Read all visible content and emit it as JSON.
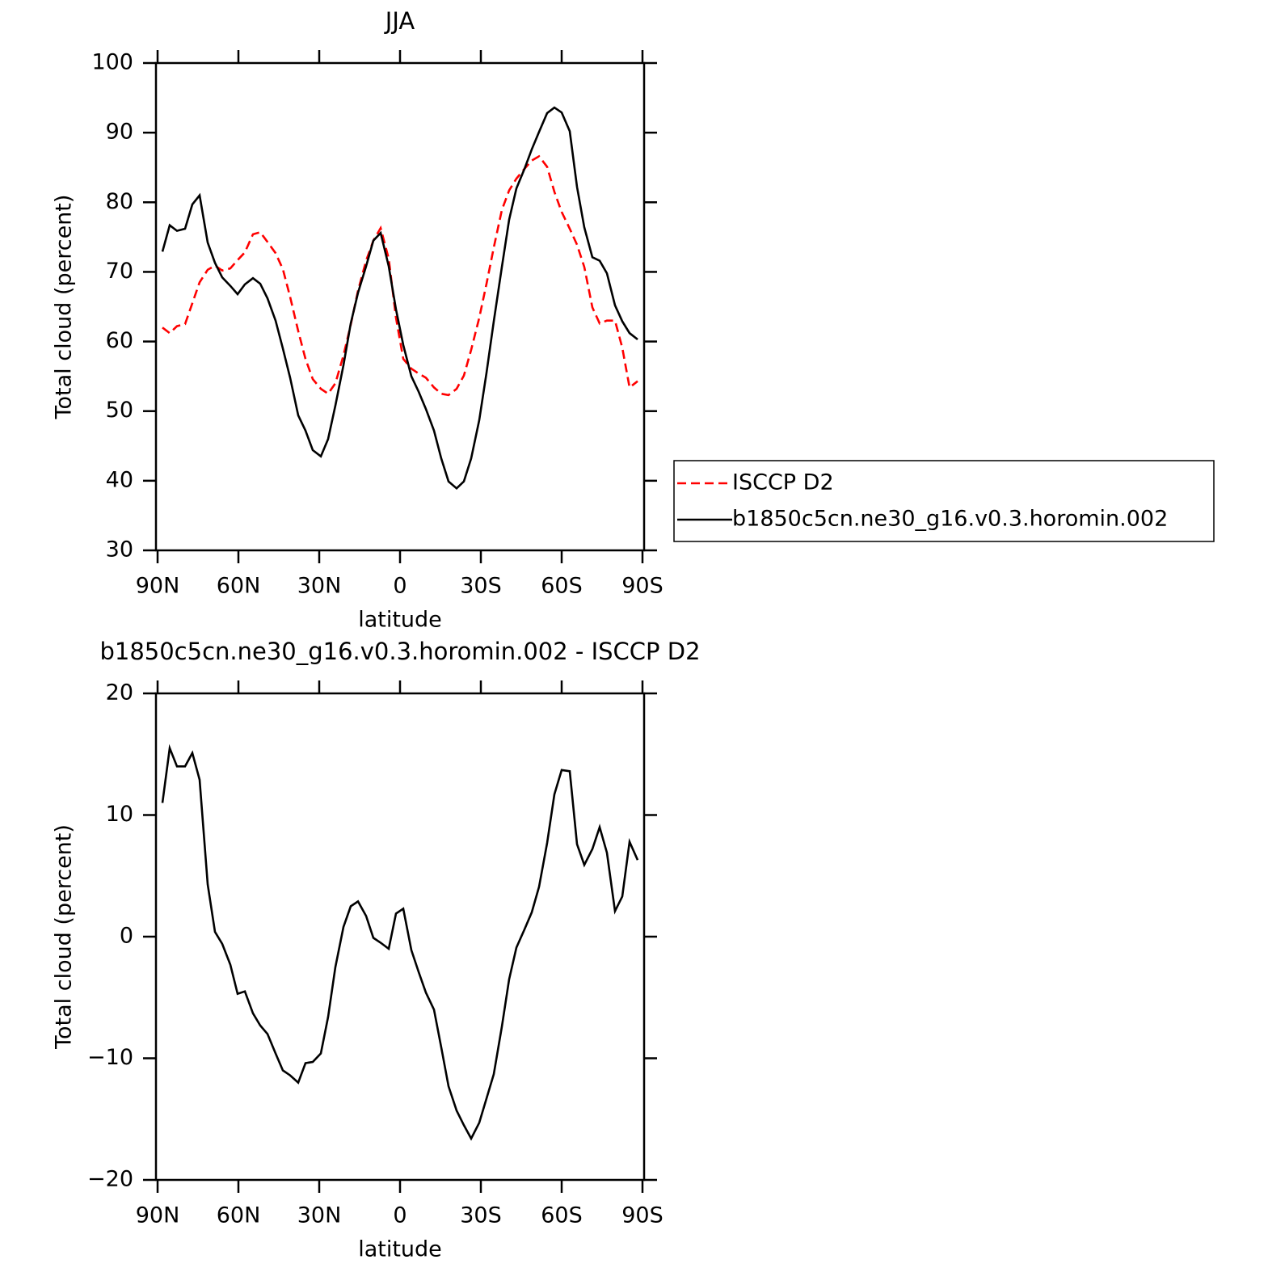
{
  "chart_data": [
    {
      "type": "line",
      "title": "JJA",
      "ylabel": "Total cloud (percent)",
      "xlabel": "latitude",
      "xlim": [
        90,
        -90
      ],
      "xticks": [
        {
          "value": 90,
          "label": "90N"
        },
        {
          "value": 60,
          "label": "60N"
        },
        {
          "value": 30,
          "label": "30N"
        },
        0,
        {
          "value": -30,
          "label": "30S"
        },
        {
          "value": -60,
          "label": "60S"
        },
        {
          "value": -90,
          "label": "90S"
        }
      ],
      "ylim": [
        30,
        100
      ],
      "yticks": [
        30,
        40,
        50,
        60,
        70,
        80,
        90,
        100
      ],
      "legend": "right",
      "x": [
        88.2,
        85.5,
        82.8,
        79.8,
        77.1,
        74.4,
        71.4,
        68.7,
        66.0,
        63.0,
        60.3,
        57.6,
        54.6,
        51.9,
        49.2,
        46.2,
        43.5,
        40.8,
        37.8,
        35.1,
        32.4,
        29.4,
        26.7,
        24.0,
        21.0,
        18.3,
        15.6,
        12.6,
        9.9,
        7.2,
        4.2,
        1.5,
        -1.2,
        -4.2,
        -6.9,
        -9.6,
        -12.6,
        -15.3,
        -18.0,
        -21.0,
        -23.7,
        -26.4,
        -29.4,
        -32.1,
        -34.8,
        -37.8,
        -40.5,
        -43.2,
        -46.2,
        -48.9,
        -51.6,
        -54.6,
        -57.3,
        -60.0,
        -63.0,
        -65.7,
        -68.4,
        -71.4,
        -74.1,
        -76.8,
        -79.8,
        -82.5,
        -85.2,
        -88.2
      ],
      "series": [
        {
          "name": "ISCCP D2",
          "color": "#ff0000",
          "line_style": "dashed",
          "values": [
            62.0,
            61.2,
            62.2,
            62.5,
            65.5,
            68.5,
            70.3,
            70.9,
            70.2,
            70.5,
            71.7,
            72.8,
            75.4,
            75.7,
            74.3,
            72.7,
            70.4,
            66.4,
            61.5,
            57.5,
            54.6,
            53.2,
            52.5,
            54.0,
            58.0,
            62.4,
            67.3,
            71.6,
            74.5,
            76.3,
            71.9,
            63.4,
            57.5,
            56.1,
            55.4,
            54.8,
            53.4,
            52.5,
            52.3,
            53.2,
            55.1,
            58.8,
            63.4,
            68.3,
            73.5,
            78.9,
            81.7,
            83.4,
            84.8,
            86.0,
            86.6,
            85.1,
            81.5,
            78.6,
            76.2,
            73.9,
            70.7,
            64.9,
            62.6,
            63.0,
            63.0,
            59.1,
            53.4,
            54.3
          ]
        },
        {
          "name": "b1850c5cn.ne30_g16.v0.3.horomin.002",
          "color": "#000000",
          "line_style": "solid",
          "values": [
            72.9,
            76.7,
            75.9,
            76.2,
            79.7,
            81.0,
            74.2,
            71.3,
            69.2,
            68.0,
            66.8,
            68.2,
            69.1,
            68.3,
            66.2,
            63.0,
            59.0,
            54.8,
            49.4,
            47.2,
            44.4,
            43.5,
            46.0,
            50.8,
            56.6,
            62.6,
            67.0,
            70.8,
            74.5,
            75.6,
            70.8,
            64.6,
            59.5,
            55.0,
            52.8,
            50.3,
            47.2,
            43.2,
            39.9,
            38.9,
            39.9,
            43.2,
            48.7,
            55.5,
            62.9,
            70.7,
            77.5,
            82.0,
            84.8,
            87.6,
            90.1,
            92.8,
            93.6,
            92.9,
            90.2,
            82.2,
            76.4,
            72.1,
            71.6,
            69.8,
            65.2,
            62.9,
            61.2,
            60.3
          ]
        }
      ]
    },
    {
      "type": "line",
      "title": "b1850c5cn.ne30_g16.v0.3.horomin.002 - ISCCP D2",
      "ylabel": "Total cloud (percent)",
      "xlabel": "latitude",
      "xlim": [
        90,
        -90
      ],
      "xticks": [
        {
          "value": 90,
          "label": "90N"
        },
        {
          "value": 60,
          "label": "60N"
        },
        {
          "value": 30,
          "label": "30N"
        },
        0,
        {
          "value": -30,
          "label": "30S"
        },
        {
          "value": -60,
          "label": "60S"
        },
        {
          "value": -90,
          "label": "90S"
        }
      ],
      "ylim": [
        -20,
        20
      ],
      "yticks": [
        {
          "value": -20,
          "label": "−20"
        },
        {
          "value": -10,
          "label": "−10"
        },
        0,
        10,
        20
      ],
      "color": "#000000",
      "line_style": "solid",
      "x": [
        88.2,
        85.5,
        82.8,
        79.8,
        77.1,
        74.4,
        71.4,
        68.7,
        66.0,
        63.0,
        60.3,
        57.6,
        54.6,
        51.9,
        49.2,
        46.2,
        43.5,
        40.8,
        37.8,
        35.1,
        32.4,
        29.4,
        26.7,
        24.0,
        21.0,
        18.3,
        15.6,
        12.6,
        9.9,
        7.2,
        4.2,
        1.5,
        -1.2,
        -4.2,
        -6.9,
        -9.6,
        -12.6,
        -15.3,
        -18.0,
        -21.0,
        -23.7,
        -26.4,
        -29.4,
        -32.1,
        -34.8,
        -37.8,
        -40.5,
        -43.2,
        -46.2,
        -48.9,
        -51.6,
        -54.6,
        -57.3,
        -60.0,
        -63.0,
        -65.7,
        -68.4,
        -71.4,
        -74.1,
        -76.8,
        -79.8,
        -82.5,
        -85.2,
        -88.2
      ],
      "values": [
        11.0,
        15.5,
        14.0,
        14.0,
        15.1,
        12.9,
        4.3,
        0.4,
        -0.6,
        -2.3,
        -4.7,
        -4.5,
        -6.3,
        -7.3,
        -8.0,
        -9.6,
        -11.0,
        -11.4,
        -12.0,
        -10.4,
        -10.3,
        -9.6,
        -6.6,
        -2.5,
        0.8,
        2.5,
        2.9,
        1.7,
        -0.1,
        -0.5,
        -1.0,
        1.9,
        2.3,
        -1.1,
        -2.9,
        -4.6,
        -6.0,
        -9.1,
        -12.3,
        -14.3,
        -15.5,
        -16.6,
        -15.3,
        -13.3,
        -11.3,
        -7.4,
        -3.5,
        -0.9,
        0.6,
        2.0,
        4.1,
        7.7,
        11.7,
        13.7,
        13.6,
        7.6,
        5.9,
        7.2,
        9.0,
        6.9,
        2.1,
        3.3,
        7.8,
        6.3
      ]
    }
  ]
}
